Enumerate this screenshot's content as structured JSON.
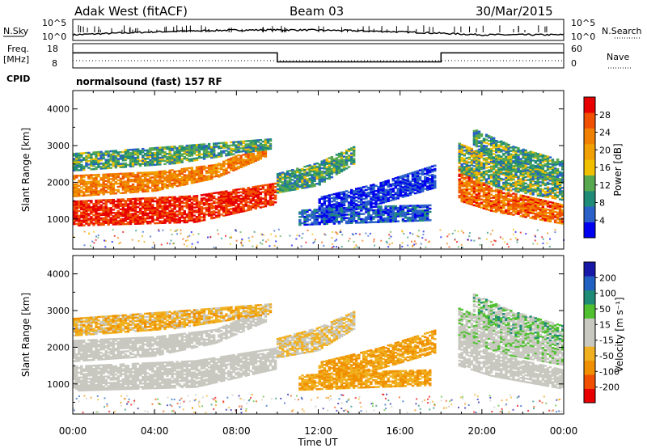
{
  "header": {
    "station": "Adak West (fitACF)",
    "beam": "Beam 03",
    "date": "30/Mar/2015"
  },
  "noise_panel": {
    "left_label": "N.Sky",
    "right_label": "N.Search",
    "left_ticks": [
      "10^5",
      "10^0"
    ],
    "right_ticks": [
      "10^5",
      "10^0"
    ]
  },
  "freq_panel": {
    "left_label_1": "Freq.",
    "left_label_2": "[MHz]",
    "right_label": "Nave",
    "left_ticks": [
      "18",
      "8"
    ],
    "right_ticks": [
      "60",
      "0"
    ],
    "freq_steps": [
      {
        "from": 0,
        "to": 10,
        "level": 0.62
      },
      {
        "from": 10,
        "to": 18,
        "level": 0.25
      },
      {
        "from": 18,
        "to": 24,
        "level": 0.62
      }
    ]
  },
  "cpid": {
    "label": "CPID",
    "text": "normalsound (fast) 157 RF"
  },
  "chart_data": [
    {
      "type": "heatmap",
      "name": "power",
      "ylabel": "Slant Range [km]",
      "ylim": [
        180,
        4500
      ],
      "yticks": [
        1000,
        2000,
        3000,
        4000
      ],
      "xlim": [
        0,
        24
      ],
      "colorbar": {
        "label": "Power [dB]",
        "ticks": [
          "28",
          "24",
          "20",
          "16",
          "12",
          "8",
          "4"
        ],
        "colors": [
          "#0000f0",
          "#2a60c8",
          "#208c78",
          "#58a850",
          "#f0c000",
          "#f0a000",
          "#f08000",
          "#f05000",
          "#e80000"
        ]
      },
      "bands": [
        {
          "t": [
            0,
            6,
            10
          ],
          "low": [
            800,
            900,
            1400
          ],
          "high": [
            1500,
            1650,
            2000
          ],
          "c": [
            7,
            8
          ]
        },
        {
          "t": [
            0,
            4,
            7,
            9.5
          ],
          "low": [
            1600,
            1750,
            2100,
            2700
          ],
          "high": [
            2200,
            2300,
            2500,
            3100
          ],
          "c": [
            5,
            7
          ]
        },
        {
          "t": [
            0,
            5,
            9.7
          ],
          "low": [
            2300,
            2500,
            2900
          ],
          "high": [
            2800,
            3000,
            3200
          ],
          "c": [
            1,
            4
          ]
        },
        {
          "t": [
            10,
            12,
            13.8
          ],
          "low": [
            1700,
            1900,
            2500
          ],
          "high": [
            2250,
            2550,
            3000
          ],
          "c": [
            1,
            4
          ]
        },
        {
          "t": [
            12,
            15,
            17.8
          ],
          "low": [
            1000,
            1400,
            1850
          ],
          "high": [
            1600,
            2000,
            2500
          ],
          "c": [
            0,
            1
          ]
        },
        {
          "t": [
            11,
            14,
            17.5
          ],
          "low": [
            820,
            880,
            950
          ],
          "high": [
            1250,
            1350,
            1400
          ],
          "c": [
            0,
            2
          ]
        },
        {
          "t": [
            18.8,
            20.5,
            24
          ],
          "low": [
            1500,
            1200,
            850
          ],
          "high": [
            2500,
            1850,
            1400
          ],
          "c": [
            5,
            8
          ]
        },
        {
          "t": [
            18.8,
            21,
            24
          ],
          "low": [
            2300,
            1800,
            1500
          ],
          "high": [
            3100,
            2600,
            2050
          ],
          "c": [
            1,
            5
          ]
        },
        {
          "t": [
            19.5,
            21.5,
            24
          ],
          "low": [
            3000,
            2300,
            2000
          ],
          "high": [
            3500,
            3000,
            2600
          ],
          "c": [
            1,
            4
          ]
        }
      ]
    },
    {
      "type": "heatmap",
      "name": "velocity",
      "ylabel": "Slant Range [km]",
      "ylim": [
        180,
        4500
      ],
      "yticks": [
        1000,
        2000,
        3000,
        4000
      ],
      "xlim": [
        0,
        24
      ],
      "xticks": [
        "00:00",
        "04:00",
        "08:00",
        "12:00",
        "16:00",
        "20:00",
        "00:00"
      ],
      "xlabel": "Time UT",
      "colorbar": {
        "label": "Velocity [m s⁻¹]",
        "ticks": [
          "200",
          "100",
          "50",
          "15",
          "-15",
          "-50",
          "-100",
          "-200"
        ],
        "colors": [
          "#e80000",
          "#f05000",
          "#f09000",
          "#f0b020",
          "#c8c8c0",
          "#c8c8c0",
          "#50c030",
          "#208c78",
          "#2060c0",
          "#1818a8"
        ]
      },
      "bands": [
        {
          "t": [
            0,
            6,
            10
          ],
          "low": [
            800,
            900,
            1400
          ],
          "high": [
            1500,
            1650,
            2000
          ],
          "c": [
            4,
            4
          ]
        },
        {
          "t": [
            0,
            4,
            7,
            9.5
          ],
          "low": [
            1600,
            1750,
            2100,
            2700
          ],
          "high": [
            2200,
            2300,
            2500,
            3100
          ],
          "c": [
            4,
            4
          ]
        },
        {
          "t": [
            0,
            5,
            9.7
          ],
          "low": [
            2300,
            2500,
            2900
          ],
          "high": [
            2800,
            3000,
            3200
          ],
          "c": [
            2,
            4
          ]
        },
        {
          "t": [
            10,
            12,
            13.8
          ],
          "low": [
            1700,
            1900,
            2500
          ],
          "high": [
            2250,
            2550,
            3000
          ],
          "c": [
            3,
            4
          ]
        },
        {
          "t": [
            12,
            15,
            17.8
          ],
          "low": [
            1000,
            1400,
            1850
          ],
          "high": [
            1600,
            2000,
            2500
          ],
          "c": [
            2,
            3
          ]
        },
        {
          "t": [
            11,
            14,
            17.5
          ],
          "low": [
            820,
            880,
            950
          ],
          "high": [
            1250,
            1350,
            1400
          ],
          "c": [
            2,
            3
          ]
        },
        {
          "t": [
            18.8,
            20.5,
            24
          ],
          "low": [
            1500,
            1200,
            850
          ],
          "high": [
            2500,
            1850,
            1400
          ],
          "c": [
            4,
            4
          ]
        },
        {
          "t": [
            18.8,
            21,
            24
          ],
          "low": [
            2300,
            1800,
            1500
          ],
          "high": [
            3100,
            2600,
            2050
          ],
          "c": [
            4,
            6
          ]
        },
        {
          "t": [
            19.5,
            21.5,
            24
          ],
          "low": [
            3000,
            2300,
            2000
          ],
          "high": [
            3500,
            3000,
            2600
          ],
          "c": [
            4,
            7
          ]
        }
      ]
    }
  ]
}
